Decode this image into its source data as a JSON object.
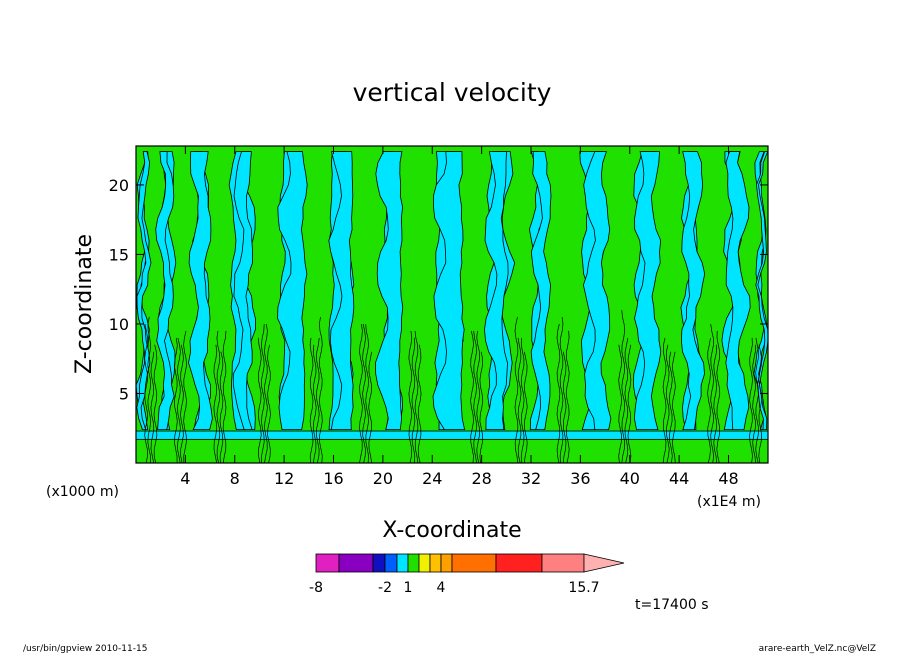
{
  "chart_data": {
    "type": "heatmap",
    "title": "vertical velocity",
    "xlabel": "X-coordinate",
    "ylabel": "Z-coordinate",
    "x_unit_left": "(x1000 m)",
    "x_unit_right": "(x1E4 m)",
    "xlim": [
      0,
      51.2
    ],
    "ylim": [
      0,
      22.8
    ],
    "xticks": [
      4,
      8,
      12,
      16,
      20,
      24,
      28,
      32,
      36,
      40,
      44,
      48
    ],
    "yticks": [
      5,
      10,
      15,
      20
    ],
    "dominant_levels": [
      {
        "range": "0 to 1",
        "color": "#00e5ff"
      },
      {
        "range": "1 to 2",
        "color": "#20e000"
      }
    ],
    "low_level_band": {
      "z_min": 1.7,
      "z_max": 2.3,
      "color": "#00e5ff"
    },
    "updraft_columns_x": [
      1.2,
      3.6,
      6.8,
      10.4,
      14.6,
      18.6,
      22.6,
      27.6,
      31.2,
      34.6,
      39.6,
      43.2,
      46.8,
      50.2
    ],
    "colorbar": {
      "colors": [
        "#e020c0",
        "#8a00c0",
        "#1010c0",
        "#0060ff",
        "#00e5ff",
        "#20e000",
        "#f0f000",
        "#ffc000",
        "#ffa000",
        "#ff7000",
        "#ff2020",
        "#ff8080",
        "#ffb0b0"
      ],
      "tick_labels": [
        "-8",
        "-2",
        "1",
        "4",
        "15.7"
      ]
    },
    "time_label": "t=17400 s"
  },
  "footer": {
    "left": "/usr/bin/gpview  2010-11-15",
    "right": "arare-earth_VelZ.nc@VelZ"
  }
}
